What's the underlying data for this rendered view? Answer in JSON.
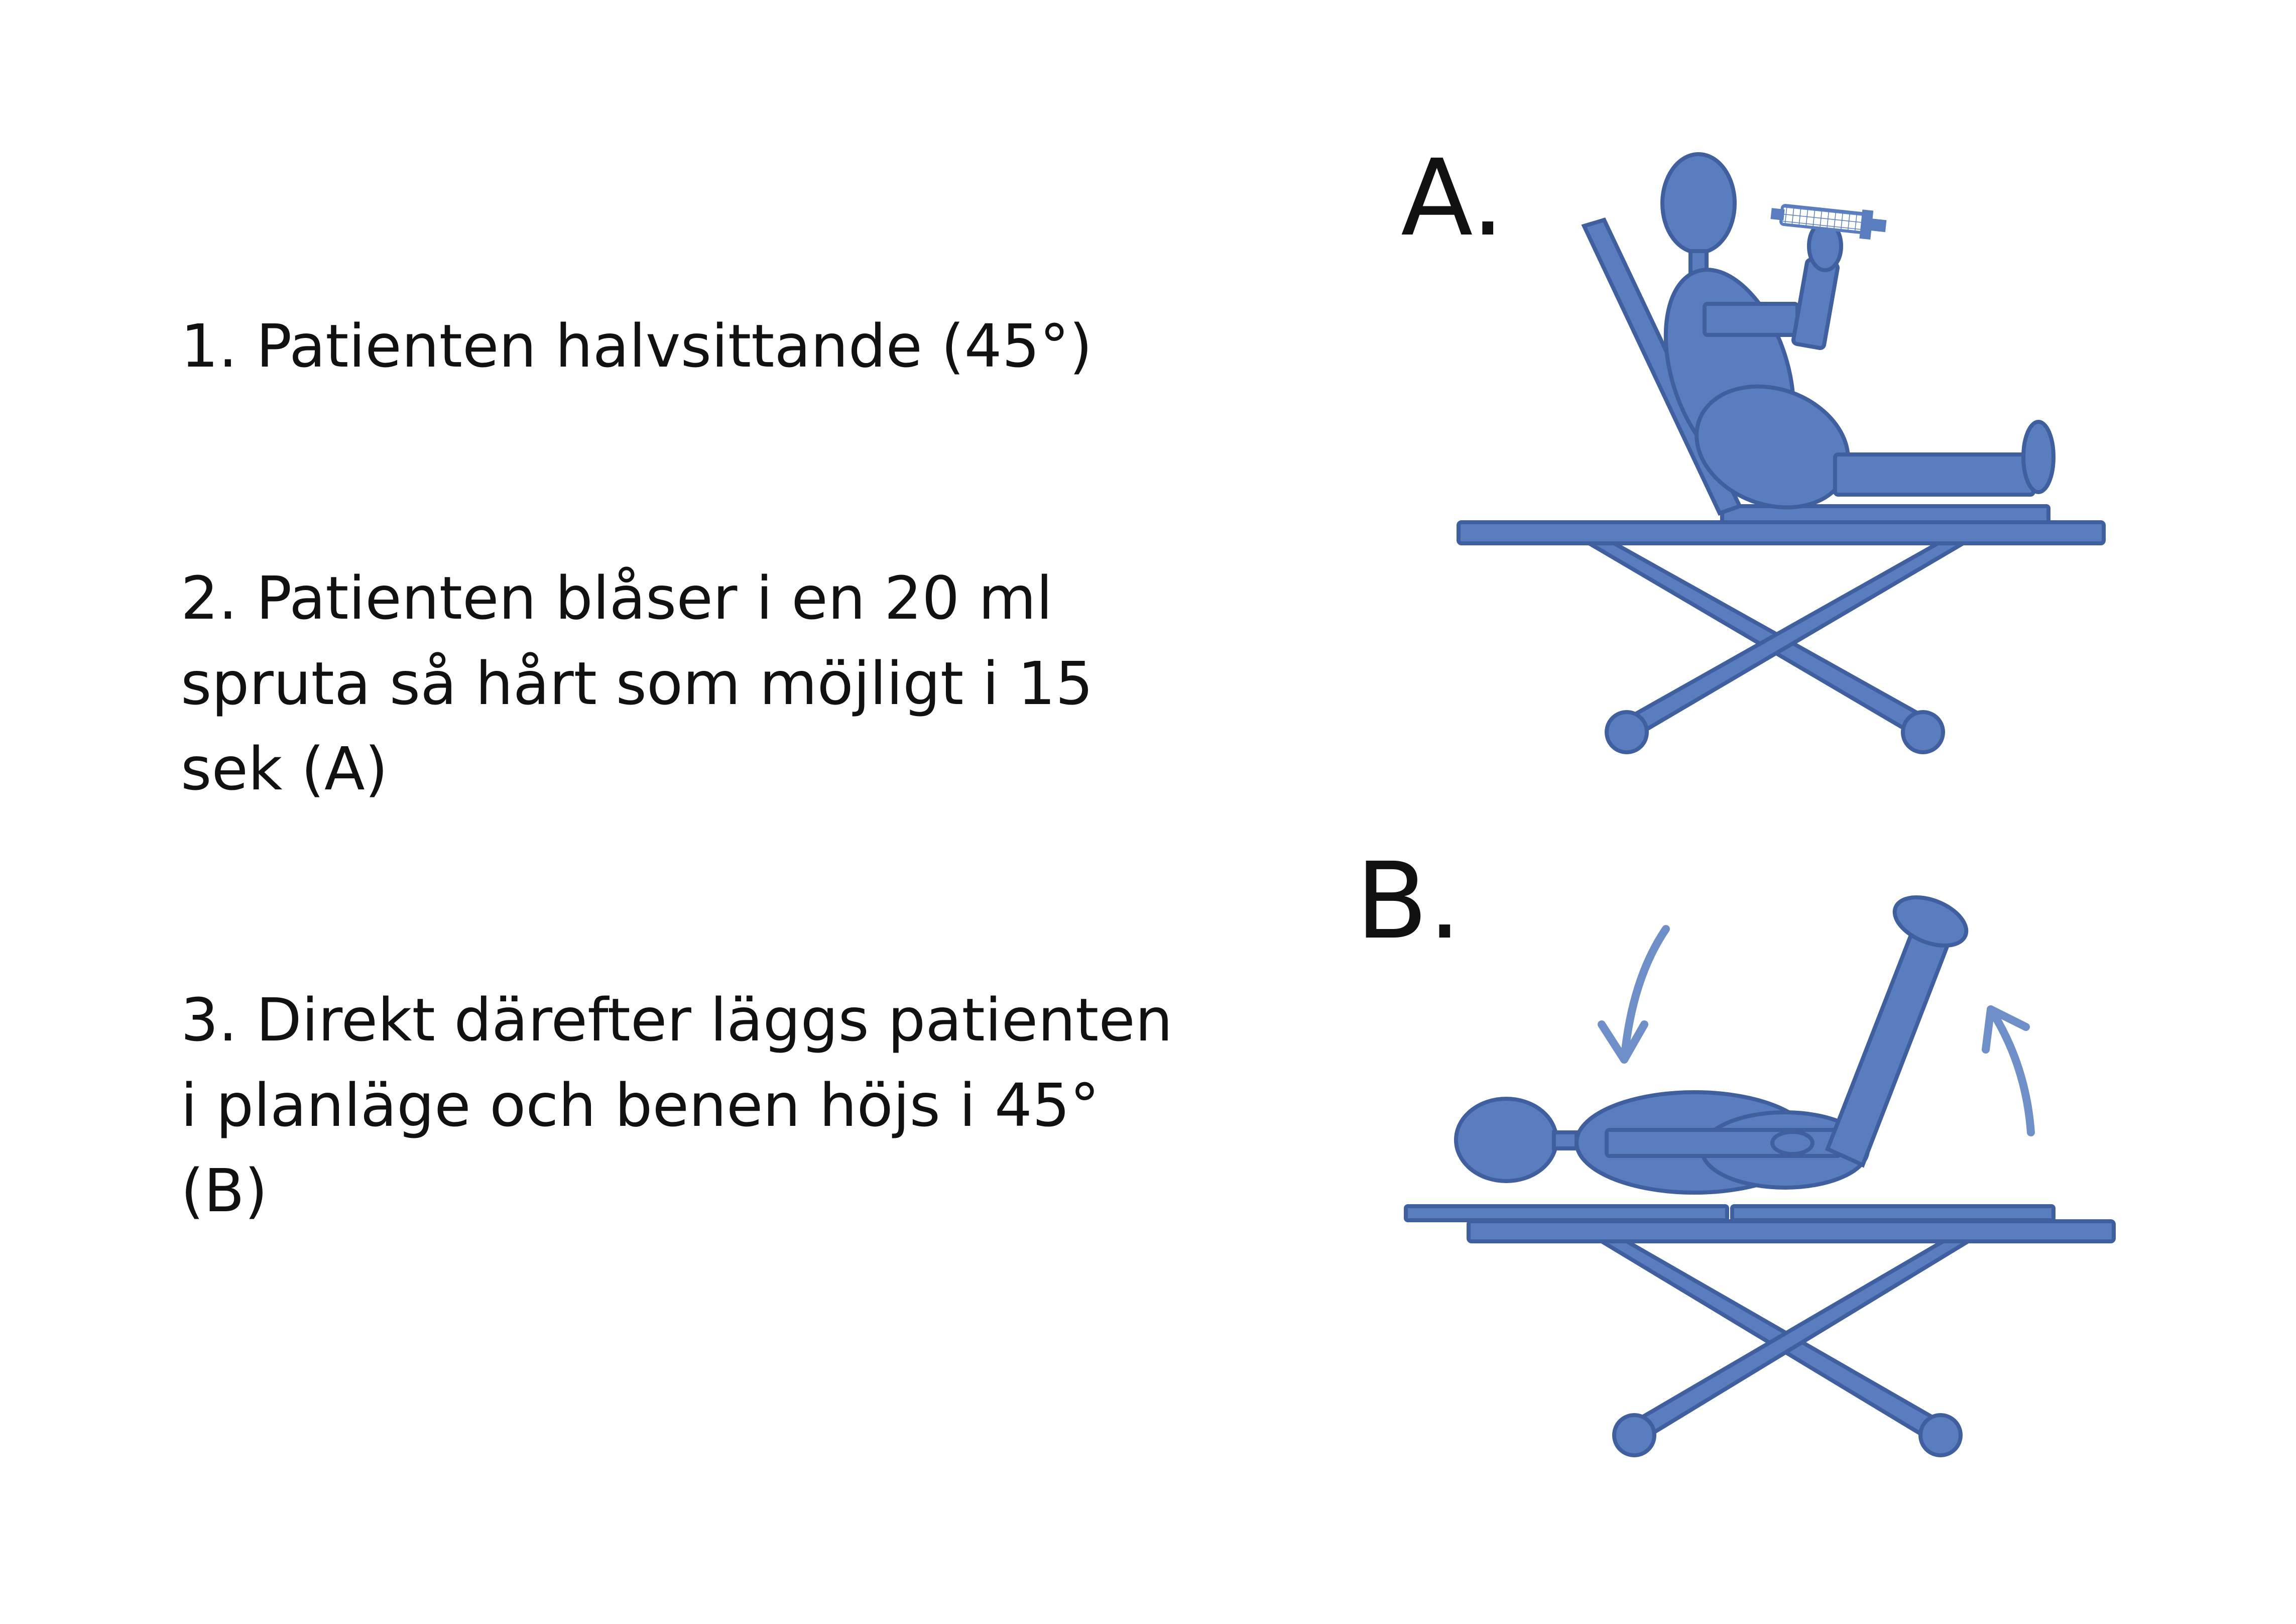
{
  "steps": [
    {
      "lines": [
        "1. Patienten halvsittande (45°)"
      ]
    },
    {
      "lines": [
        "2. Patienten blåser i en 20 ml",
        "spruta så hårt som möjligt i 15",
        "sek (A)"
      ]
    },
    {
      "lines": [
        "3. Direkt därefter läggs patienten",
        "i planläge och benen höjs i 45°",
        "(B)"
      ]
    }
  ],
  "figures": {
    "a_label": "A.",
    "b_label": "B."
  },
  "colors": {
    "figure_fill": "#5a7dc0",
    "figure_stroke": "#3f5f9f",
    "text": "#111111"
  }
}
